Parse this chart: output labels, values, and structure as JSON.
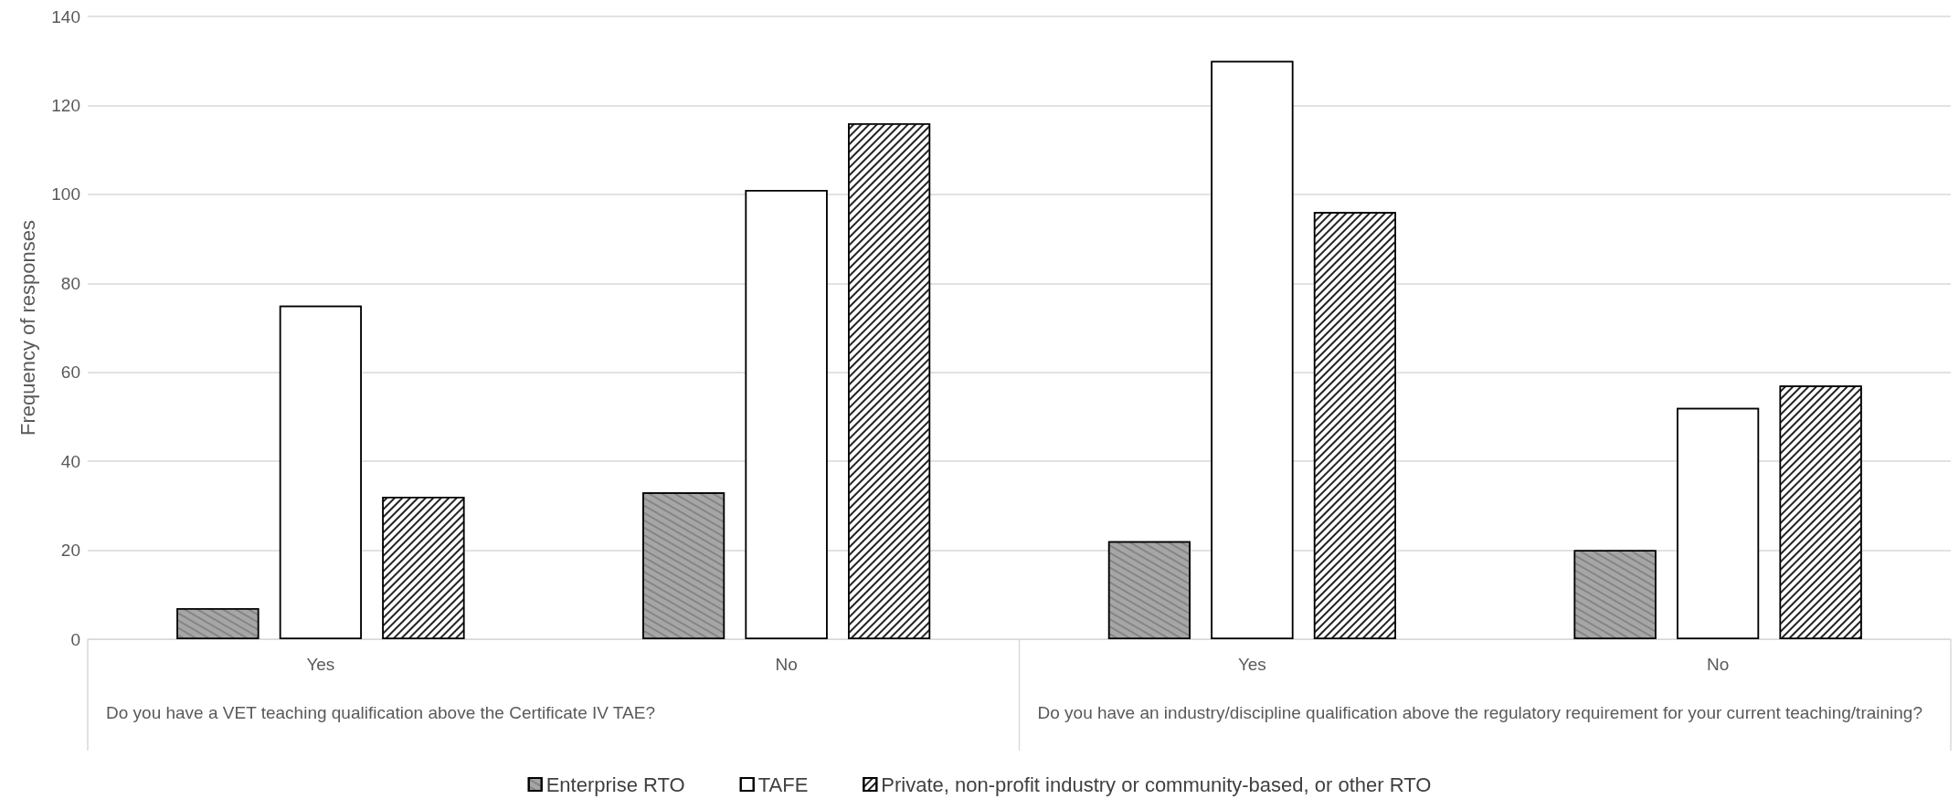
{
  "chart_data": {
    "type": "bar",
    "ylabel": "Frequency of responses",
    "categories": [
      "Yes",
      "No",
      "Yes",
      "No"
    ],
    "series": [
      {
        "name": "Enterprise RTO",
        "color": "#a6a6a6",
        "values": [
          7,
          33,
          22,
          20
        ]
      },
      {
        "name": "TAFE",
        "color": "#ffffff",
        "values": [
          75,
          101,
          130,
          52
        ]
      },
      {
        "name": "Private, non-profit industry or community-based, or other RTO",
        "color": "#ffffff",
        "values": [
          32,
          116,
          96,
          57
        ]
      }
    ],
    "annotations": [
      "Do you have a VET teaching qualification above the Certificate IV TAE?",
      "Do you have an industry/discipline qualification above the regulatory requirement for your current teaching/training?"
    ],
    "ylim": [
      0,
      140
    ],
    "yticks": [
      0,
      20,
      40,
      60,
      80,
      100,
      120,
      140
    ],
    "grid": "y",
    "legend": "bottom"
  }
}
